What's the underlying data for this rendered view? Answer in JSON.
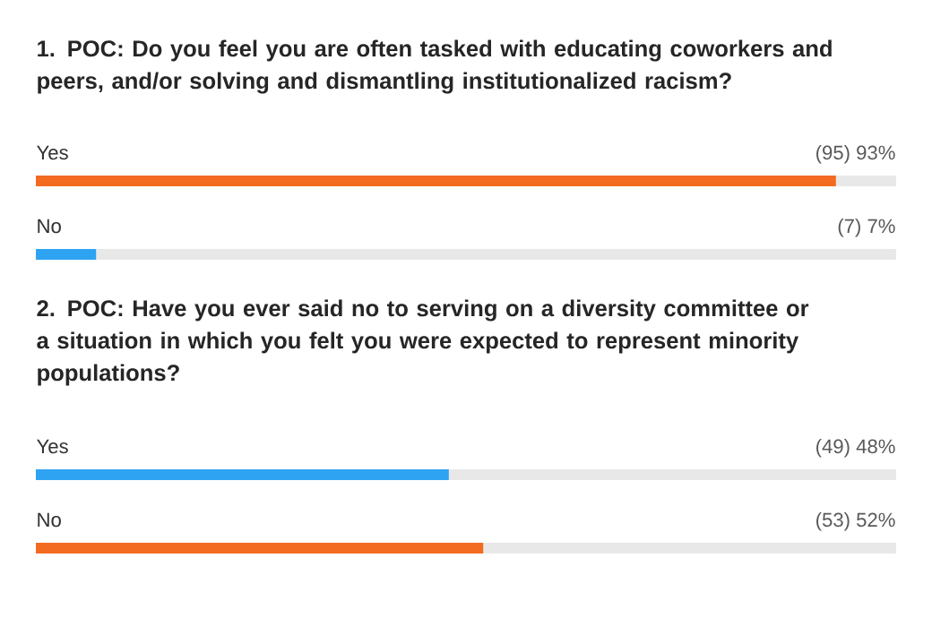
{
  "chart_data": [
    {
      "type": "bar",
      "orientation": "horizontal",
      "title": "1. POC: Do you feel you are often tasked with educating coworkers and peers, and/or solving and dismantling institutionalized racism?",
      "categories": [
        "Yes",
        "No"
      ],
      "values": [
        93,
        7
      ],
      "colors": [
        "#f26b21",
        "#2ea3f2"
      ],
      "value_labels": [
        "(95) 93%",
        "(7) 7%"
      ],
      "xlim": [
        0,
        100
      ],
      "tick_labels": false
    },
    {
      "type": "bar",
      "orientation": "horizontal",
      "title": "2. POC: Have you ever said no to serving on a diversity committee or a situation in which you felt you were expected to represent minority populations?",
      "categories": [
        "Yes",
        "No"
      ],
      "values": [
        48,
        52
      ],
      "colors": [
        "#2ea3f2",
        "#f26b21"
      ],
      "value_labels": [
        "(49) 48%",
        "(53) 52%"
      ],
      "xlim": [
        0,
        100
      ],
      "tick_labels": false
    }
  ]
}
